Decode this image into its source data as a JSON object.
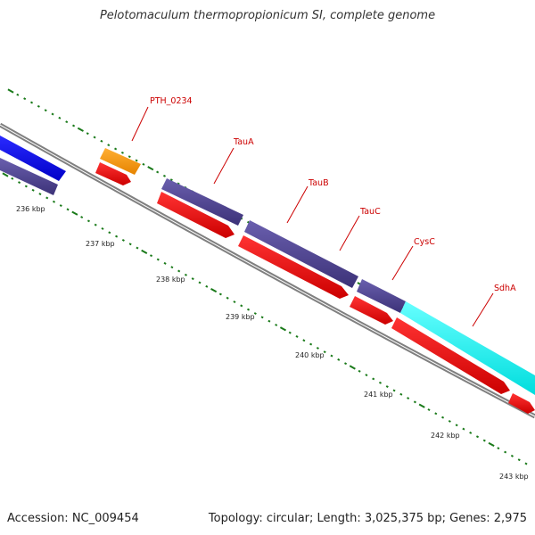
{
  "title": "Pelotomaculum thermopropionicum SI, complete genome",
  "accession": "Accession: NC_009454",
  "topology": "Topology: circular; Length: 3,025,375 bp; Genes: 2,975",
  "ticks": [
    "236 kbp",
    "237 kbp",
    "238 kbp",
    "239 kbp",
    "240 kbp",
    "241 kbp",
    "242 kbp",
    "243 kbp"
  ],
  "gene_labels": [
    "PTH_0234",
    "TauA",
    "TauB",
    "TauC",
    "CysC",
    "SdhA"
  ],
  "colors": {
    "blue": "#0000ee",
    "navy": "#4a3f8c",
    "orange": "#ff9900",
    "red": "#ee0000",
    "cyan": "#00ffff",
    "backbone": "#808080",
    "tick": "#1a7a1a",
    "label": "#cc0000"
  }
}
